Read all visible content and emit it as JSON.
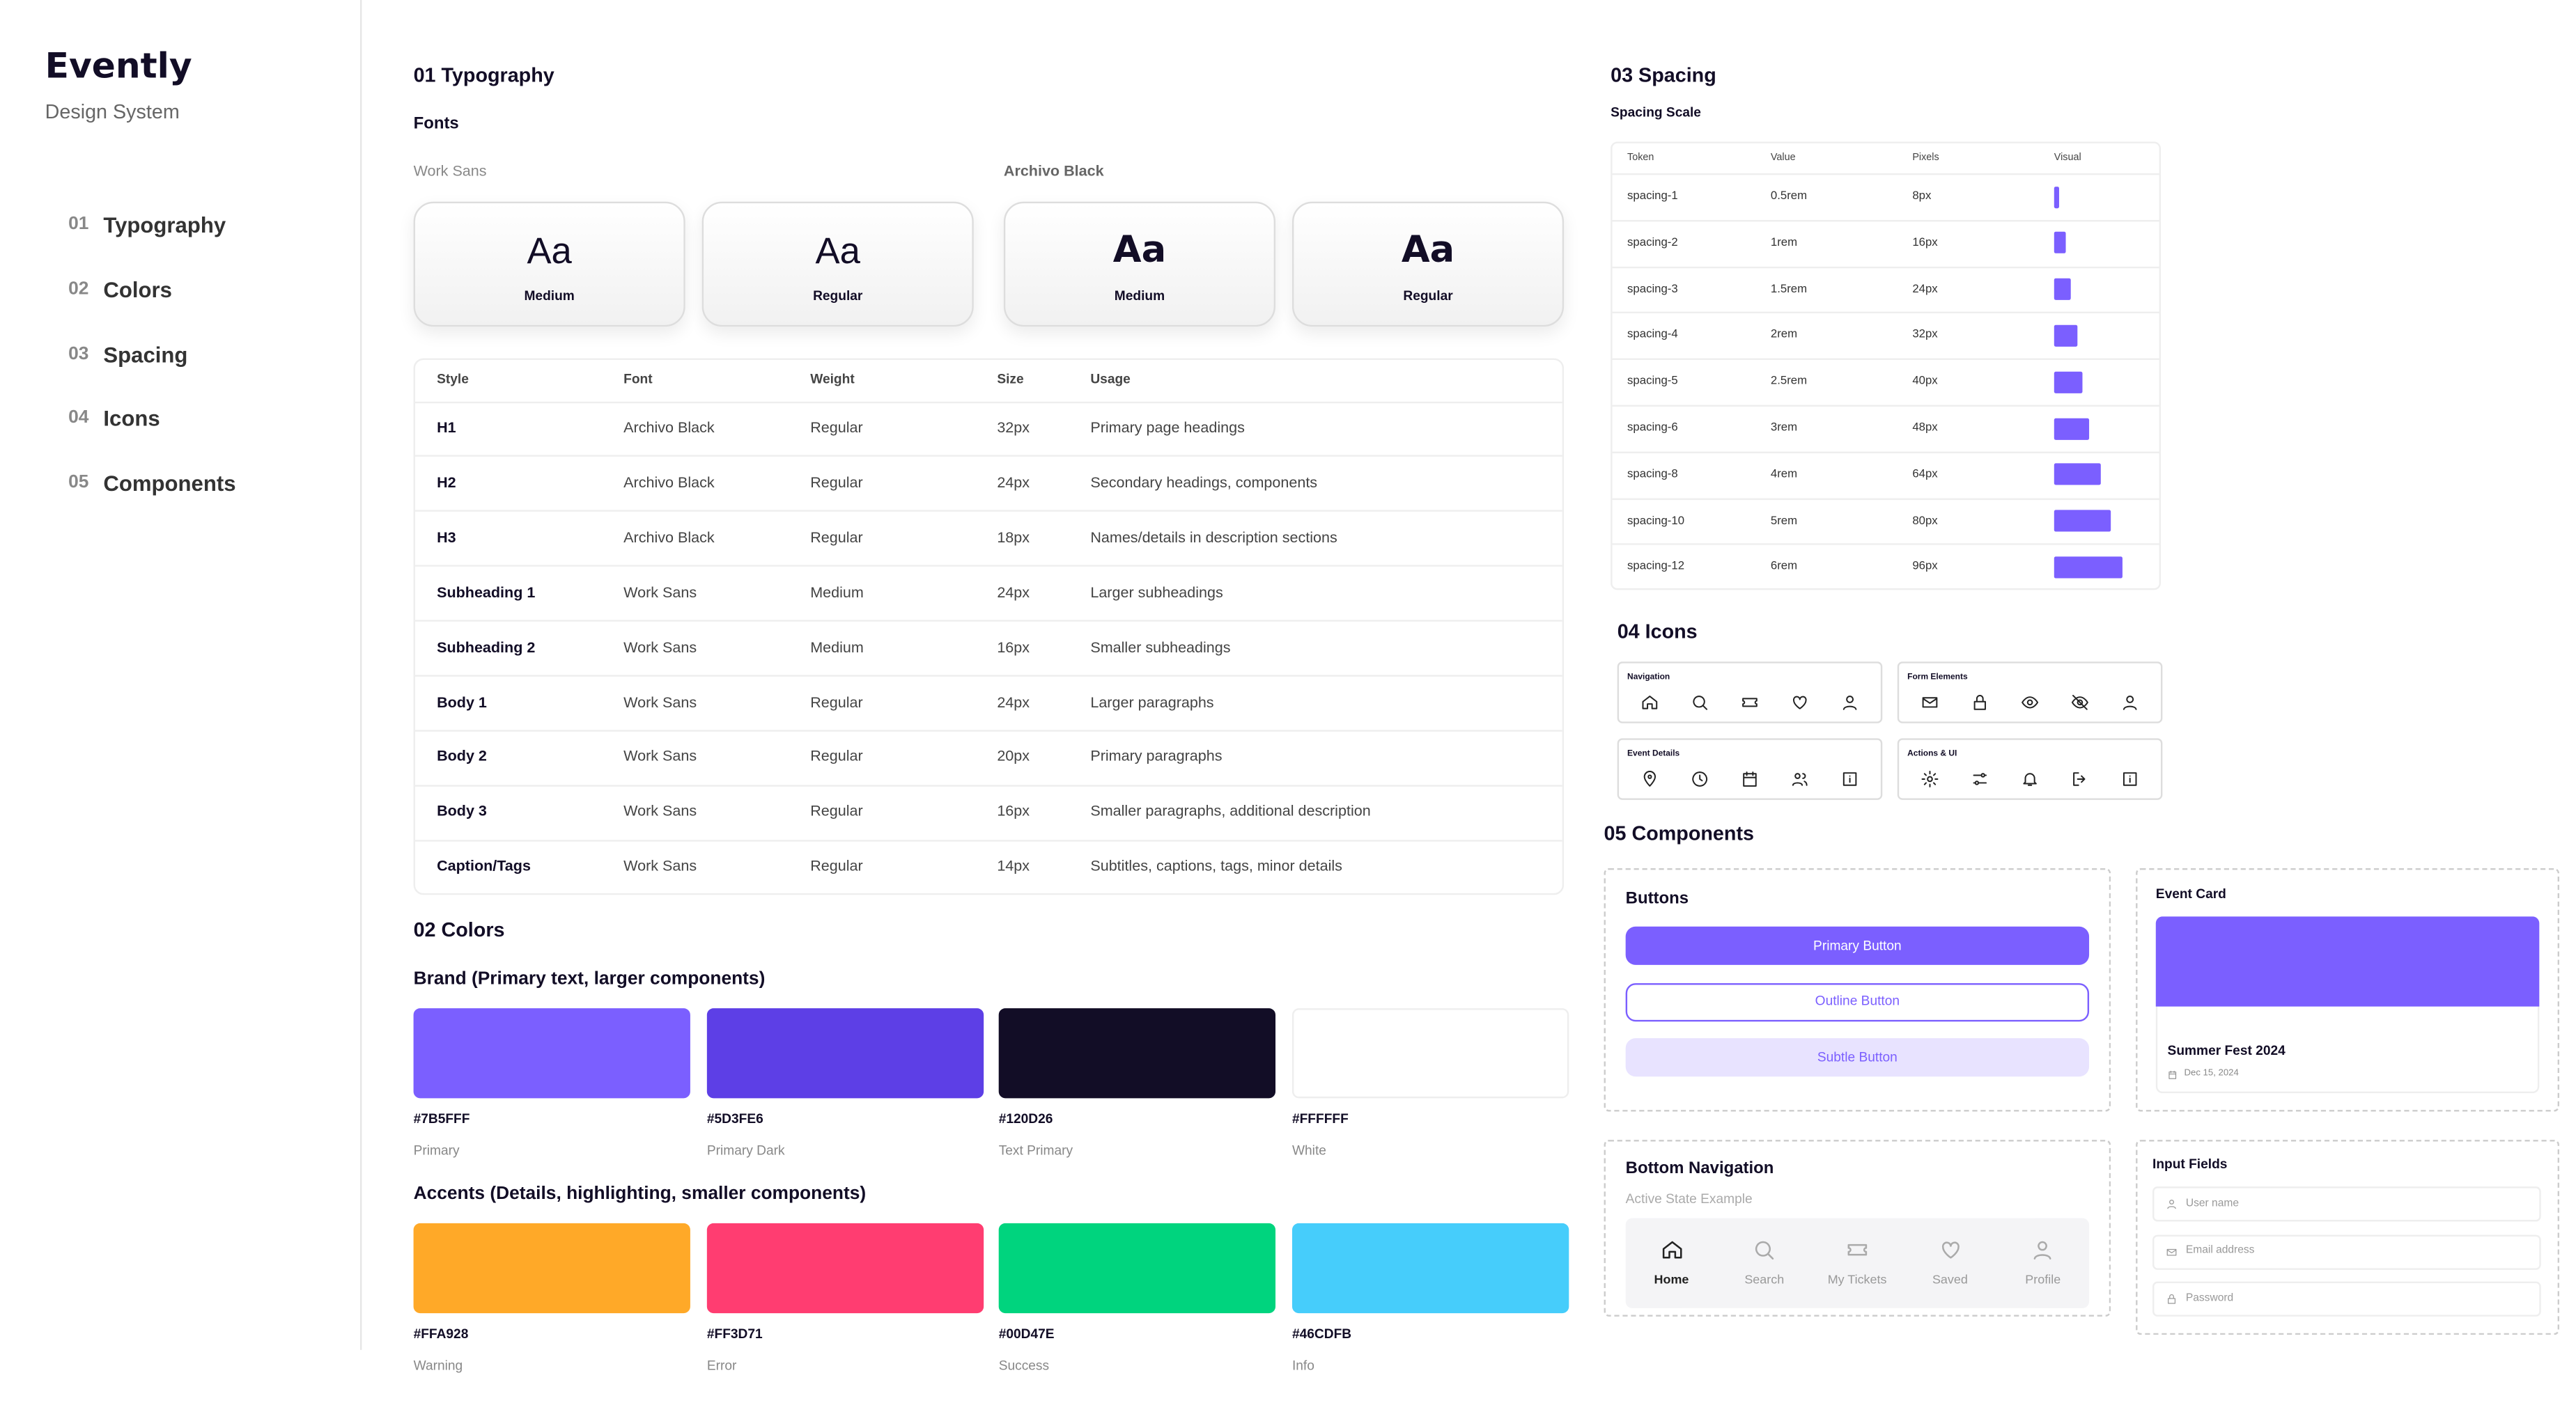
{
  "sidebar": {
    "brand": "Evently",
    "subtitle": "Design System",
    "nav": [
      {
        "num": "01",
        "label": "Typography"
      },
      {
        "num": "02",
        "label": "Colors"
      },
      {
        "num": "03",
        "label": "Spacing"
      },
      {
        "num": "04",
        "label": "Icons"
      },
      {
        "num": "05",
        "label": "Components"
      }
    ]
  },
  "typography": {
    "title": "01 Typography",
    "fonts_title": "Fonts",
    "font_groups": [
      {
        "name": "Work Sans",
        "cards": [
          {
            "sample": "Aa",
            "weight": "Medium"
          },
          {
            "sample": "Aa",
            "weight": "Regular"
          }
        ]
      },
      {
        "name": "Archivo Black",
        "cards": [
          {
            "sample": "Aa",
            "weight": "Medium"
          },
          {
            "sample": "Aa",
            "weight": "Regular"
          }
        ]
      }
    ],
    "table": {
      "header": [
        "Style",
        "Font",
        "Weight",
        "Size",
        "Usage"
      ],
      "rows": [
        [
          "H1",
          "Archivo Black",
          "Regular",
          "32px",
          "Primary page headings"
        ],
        [
          "H2",
          "Archivo Black",
          "Regular",
          "24px",
          "Secondary headings, components"
        ],
        [
          "H3",
          "Archivo Black",
          "Regular",
          "18px",
          "Names/details in description sections"
        ],
        [
          "Subheading 1",
          "Work Sans",
          "Medium",
          "24px",
          "Larger subheadings"
        ],
        [
          "Subheading 2",
          "Work Sans",
          "Medium",
          "16px",
          "Smaller subheadings"
        ],
        [
          "Body 1",
          "Work Sans",
          "Regular",
          "24px",
          "Larger paragraphs"
        ],
        [
          "Body 2",
          "Work Sans",
          "Regular",
          "20px",
          "Primary paragraphs"
        ],
        [
          "Body 3",
          "Work Sans",
          "Regular",
          "16px",
          "Smaller paragraphs, additional description"
        ],
        [
          "Caption/Tags",
          "Work Sans",
          "Regular",
          "14px",
          "Subtitles, captions, tags, minor details"
        ]
      ]
    }
  },
  "colors": {
    "title": "02 Colors",
    "groups": [
      {
        "title": "Brand (Primary text, larger components)",
        "swatches": [
          {
            "hex": "#7B5FFF",
            "name": "Primary"
          },
          {
            "hex": "#5D3FE6",
            "name": "Primary Dark"
          },
          {
            "hex": "#120D26",
            "name": "Text Primary"
          },
          {
            "hex": "#FFFFFF",
            "name": "White"
          }
        ]
      },
      {
        "title": "Accents (Details, highlighting, smaller components)",
        "swatches": [
          {
            "hex": "#FFA928",
            "name": "Warning"
          },
          {
            "hex": "#FF3D71",
            "name": "Error"
          },
          {
            "hex": "#00D47E",
            "name": "Success"
          },
          {
            "hex": "#46CDFB",
            "name": "Info"
          }
        ]
      }
    ]
  },
  "spacing": {
    "title": "03 Spacing",
    "subtitle": "Spacing Scale",
    "header": [
      "Token",
      "Value",
      "Pixels",
      "Visual"
    ],
    "rows": [
      [
        "spacing-1",
        "0.5rem",
        "8px"
      ],
      [
        "spacing-2",
        "1rem",
        "16px"
      ],
      [
        "spacing-3",
        "1.5rem",
        "24px"
      ],
      [
        "spacing-4",
        "2rem",
        "32px"
      ],
      [
        "spacing-5",
        "2.5rem",
        "40px"
      ],
      [
        "spacing-6",
        "3rem",
        "48px"
      ],
      [
        "spacing-8",
        "4rem",
        "64px"
      ],
      [
        "spacing-10",
        "5rem",
        "80px"
      ],
      [
        "spacing-12",
        "6rem",
        "96px"
      ]
    ]
  },
  "icons": {
    "title": "04 Icons",
    "groups": [
      "Navigation",
      "Form Elements",
      "Event Details",
      "Actions & UI"
    ]
  },
  "components": {
    "title": "05 Components",
    "buttons": {
      "title": "Buttons",
      "items": [
        "Primary Button",
        "Outline Button",
        "Subtle Button"
      ]
    },
    "event_card": {
      "title": "Event Card",
      "name": "Summer Fest 2024",
      "date": "Dec 15, 2024"
    },
    "bottom_nav": {
      "title": "Bottom Navigation",
      "subtitle": "Active State Example",
      "items": [
        "Home",
        "Search",
        "My Tickets",
        "Saved",
        "Profile"
      ]
    },
    "inputs": {
      "title": "Input Fields",
      "placeholders": [
        "User name",
        "Email address",
        "Password"
      ]
    }
  }
}
